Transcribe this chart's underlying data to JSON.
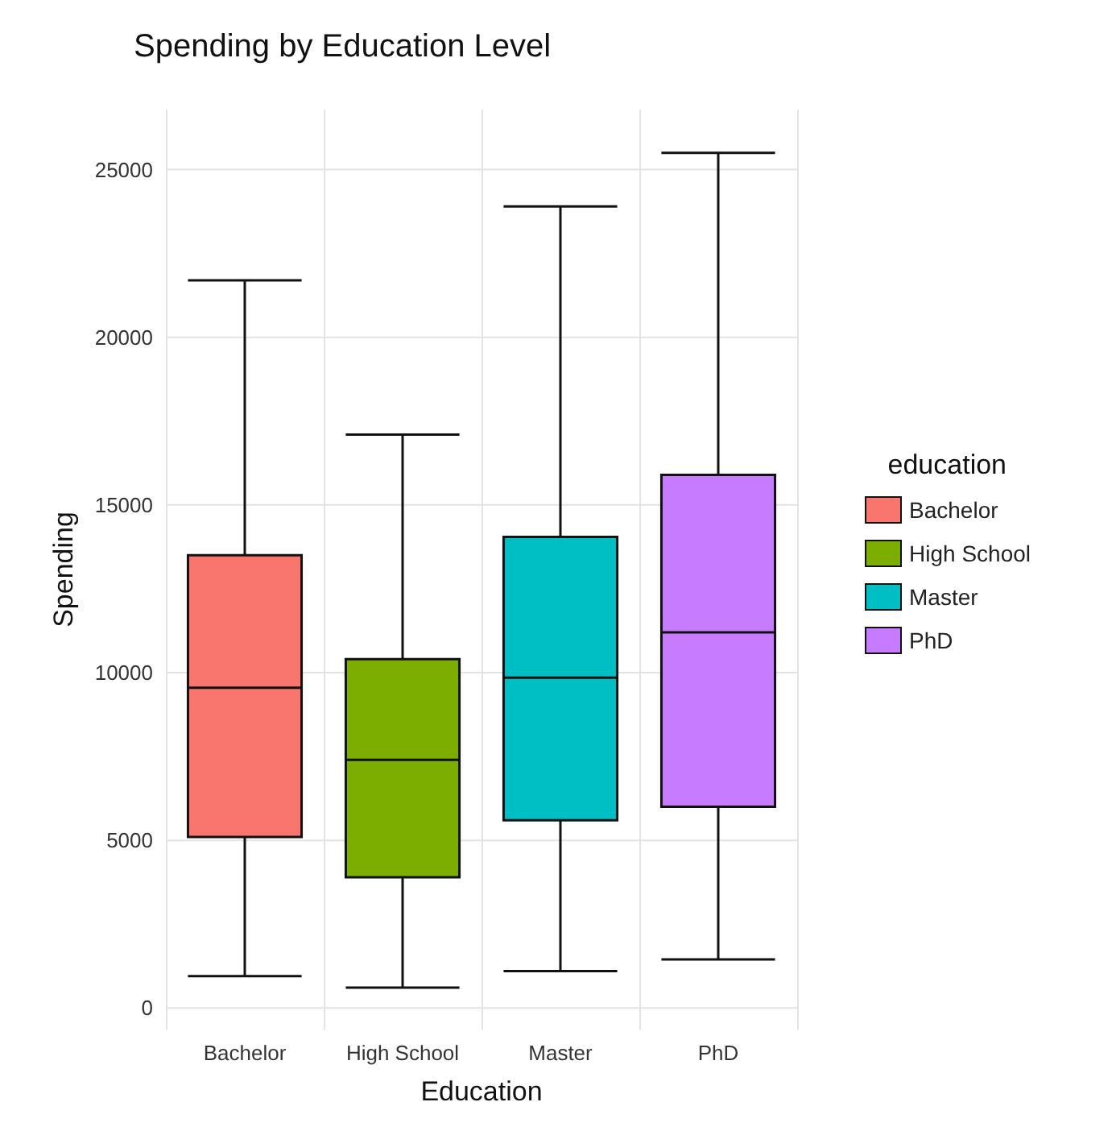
{
  "chart_data": {
    "type": "box",
    "title": "Spending by Education Level",
    "xlabel": "Education",
    "ylabel": "Spending",
    "legend_title": "education",
    "categories": [
      "Bachelor",
      "High School",
      "Master",
      "PhD"
    ],
    "series": [
      {
        "name": "Bachelor",
        "color": "#f8766d",
        "boxes": [
          {
            "low": 950,
            "q1": 5100,
            "median": 9550,
            "q3": 13500,
            "high": 21700
          },
          null,
          null,
          null
        ]
      },
      {
        "name": "High School",
        "color": "#7cae00",
        "boxes": [
          null,
          {
            "low": 610,
            "q1": 3900,
            "median": 7400,
            "q3": 10400,
            "high": 17100
          },
          null,
          null
        ]
      },
      {
        "name": "Master",
        "color": "#00bfc4",
        "boxes": [
          null,
          null,
          {
            "low": 1100,
            "q1": 5600,
            "median": 9850,
            "q3": 14050,
            "high": 23900
          },
          null
        ]
      },
      {
        "name": "PhD",
        "color": "#c77cff",
        "boxes": [
          null,
          null,
          null,
          {
            "low": 1450,
            "q1": 6000,
            "median": 11200,
            "q3": 15900,
            "high": 25500
          }
        ]
      }
    ],
    "ylim": [
      -640,
      26790
    ],
    "yticks": [
      0,
      5000,
      10000,
      15000,
      20000,
      25000
    ],
    "grid": true,
    "legend": "right"
  }
}
